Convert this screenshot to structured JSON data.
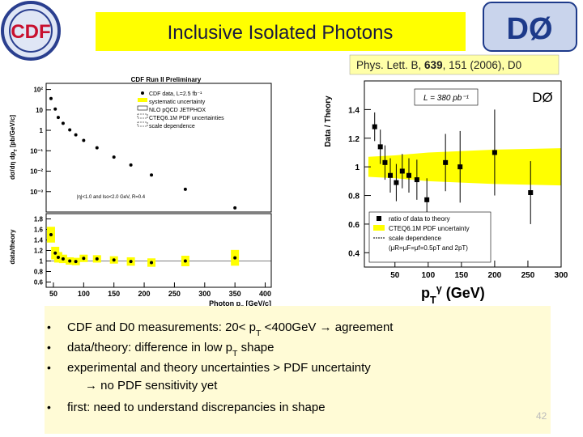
{
  "title": "Inclusive Isolated Photons",
  "logos": {
    "left": "CDF",
    "right": "DØ"
  },
  "reference": [
    {
      "text": "Phys. Lett. B, "
    },
    {
      "text": "639",
      "bold": true
    },
    {
      "text": ", 151 (2006), D0"
    }
  ],
  "left_plot": {
    "title": "CDF Run II Preliminary",
    "xlabel": [
      {
        "text": "Photon p"
      },
      {
        "text": "T",
        "sub": true
      },
      {
        "text": " [GeV/c]"
      }
    ],
    "xlim": [
      38,
      410
    ],
    "xticks": [
      50,
      100,
      150,
      200,
      250,
      300,
      350,
      400
    ],
    "x": [
      46,
      53,
      58,
      66,
      77,
      87,
      100,
      122,
      150,
      178,
      212,
      268,
      350
    ],
    "upper": {
      "ylabel": [
        {
          "text": "dσ/dη dp"
        },
        {
          "text": "T",
          "sub": true
        },
        {
          "text": " [pb/GeV/c]"
        }
      ],
      "log": true,
      "ylim": [
        0.0001,
        200
      ],
      "yticks": [
        {
          "value": 100,
          "label": "10²"
        },
        10,
        1,
        {
          "value": 0.1,
          "label": "10⁻¹"
        },
        {
          "value": 0.01,
          "label": "10⁻²"
        },
        {
          "value": 0.001,
          "label": "10⁻³"
        }
      ],
      "series": [
        {
          "name": "CDF data, L=2.5 fb⁻¹",
          "color": "#000000",
          "values": [
            36,
            11,
            4.3,
            2.2,
            1.05,
            0.6,
            0.32,
            0.14,
            0.049,
            0.02,
            0.0065,
            0.0013,
            0.00016
          ]
        }
      ],
      "legend": [
        "systematic uncertainty",
        "NLO pQCD JETPHOX",
        "CTEQ6.1M PDF uncertainties",
        "scale dependence"
      ],
      "annotation": "|η|<1.0 and Iso<2.0 GeV, R=0.4"
    },
    "lower": {
      "ylabel": "data/theory",
      "ylim": [
        0.5,
        1.9
      ],
      "yticks": [
        1.8,
        1.6,
        1.4,
        1.2,
        1,
        0.8,
        0.6
      ],
      "values": [
        1.5,
        1.15,
        1.07,
        1.04,
        1.0,
        0.99,
        1.05,
        1.04,
        1.02,
        0.99,
        0.97,
        1.0,
        1.06
      ],
      "sys_uncertainty": [
        0.15,
        0.12,
        0.1,
        0.08,
        0.07,
        0.07,
        0.07,
        0.07,
        0.07,
        0.08,
        0.08,
        0.1,
        0.15
      ],
      "color": "#000000",
      "band_color": "#ffff00"
    }
  },
  "right_plot": {
    "ylabel": "Data / Theory",
    "luminosity": "L = 380 pb⁻¹",
    "experiment": "DØ",
    "xlim": [
      4,
      300
    ],
    "xticks": [
      50,
      100,
      150,
      200,
      250,
      300
    ],
    "ylim": [
      0.3,
      1.6
    ],
    "yticks": [
      1.4,
      1.2,
      1,
      0.8,
      0.6,
      0.4
    ],
    "x": [
      19.5,
      28,
      35,
      43,
      52,
      61,
      71,
      83,
      98,
      126,
      148,
      200,
      254
    ],
    "series": [
      {
        "name": "ratio of data to theory",
        "color": "#000000",
        "values": [
          1.28,
          1.14,
          1.03,
          0.94,
          0.89,
          0.97,
          0.94,
          0.91,
          0.77,
          1.03,
          1.0,
          1.1,
          0.82
        ],
        "errors": [
          0.1,
          0.12,
          0.12,
          0.12,
          0.13,
          0.12,
          0.12,
          0.14,
          0.15,
          0.2,
          0.25,
          0.3,
          0.22
        ]
      }
    ],
    "pdf_band": {
      "name": "CTEQ6.1M PDF uncertainty",
      "color": "#ffff00",
      "x": [
        10,
        50,
        100,
        200,
        300
      ],
      "lower": [
        0.93,
        0.92,
        0.9,
        0.88,
        0.87
      ],
      "upper": [
        1.07,
        1.08,
        1.1,
        1.12,
        1.13
      ]
    },
    "legend": [
      "scale dependence",
      "(μR=μF=μf=0.5pT and 2pT)"
    ]
  },
  "axis_caption": [
    {
      "text": "p"
    },
    {
      "text": "T",
      "sub": true
    },
    {
      "text": "γ",
      "sup": true
    },
    {
      "text": " (GeV)"
    }
  ],
  "bullets": [
    [
      {
        "text": "CDF and D0 measurements: 20< p"
      },
      {
        "text": "T",
        "sub": true
      },
      {
        "text": " <400GeV → agreement"
      }
    ],
    [
      {
        "text": "data/theory: difference in low p"
      },
      {
        "text": "T",
        "sub": true
      },
      {
        "text": " shape"
      }
    ],
    [
      {
        "text": "experimental and theory uncertainties > PDF uncertainty"
      }
    ],
    [
      {
        "text": "first: need to understand discrepancies in shape"
      }
    ]
  ],
  "bullet_note": "→ no PDF sensitivity yet",
  "page_number": "42"
}
